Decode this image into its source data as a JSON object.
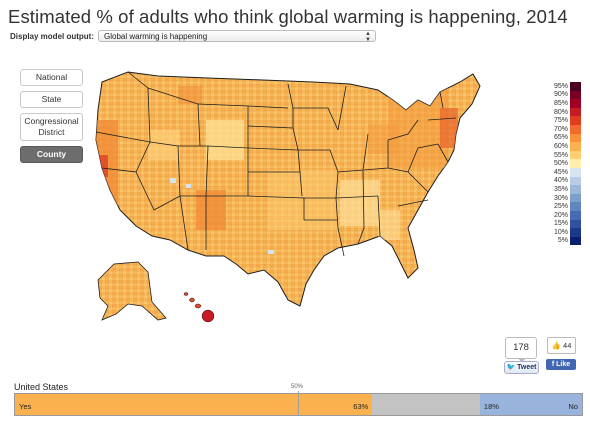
{
  "title": "Estimated % of adults who think global warming is happening, 2014",
  "model_selector": {
    "label": "Display model output:",
    "value": "Global warming is happening"
  },
  "geo_buttons": [
    {
      "label": "National",
      "active": false
    },
    {
      "label": "State",
      "active": false
    },
    {
      "label": "Congressional District",
      "active": false
    },
    {
      "label": "County",
      "active": true
    }
  ],
  "legend": {
    "labels": [
      "95%",
      "90%",
      "85%",
      "80%",
      "75%",
      "70%",
      "65%",
      "60%",
      "55%",
      "50%",
      "45%",
      "40%",
      "35%",
      "30%",
      "25%",
      "20%",
      "15%",
      "10%",
      "5%"
    ],
    "colors": [
      "#4a0025",
      "#7a0026",
      "#a00026",
      "#c81a22",
      "#e33b1f",
      "#f2692c",
      "#f7913a",
      "#fbb14e",
      "#fdce72",
      "#ffeeaa",
      "#d8e3f0",
      "#b8cde5",
      "#9bb7da",
      "#7e9ecd",
      "#6385bf",
      "#496ab0",
      "#31519f",
      "#1d378b",
      "#0d1f6c"
    ]
  },
  "social": {
    "tweet_count": "178",
    "tweet_label": "Tweet",
    "like_count": "44",
    "like_label": "Like"
  },
  "national_bar": {
    "region": "United States",
    "midpoint_label": "50%",
    "yes_label": "Yes",
    "yes_pct": 63,
    "yes_text": "63%",
    "no_label": "No",
    "no_pct": 18,
    "no_text": "18%",
    "colors": {
      "yes": "#fbb14e",
      "unsure": "#c3c3c3",
      "no": "#98b4dd"
    }
  },
  "map": {
    "base_color": "#f9b95a",
    "light_color": "#fddc8e",
    "dark_color": "#f08a35",
    "hot_color": "#e0482a",
    "border_color": "#1e1e1e"
  }
}
